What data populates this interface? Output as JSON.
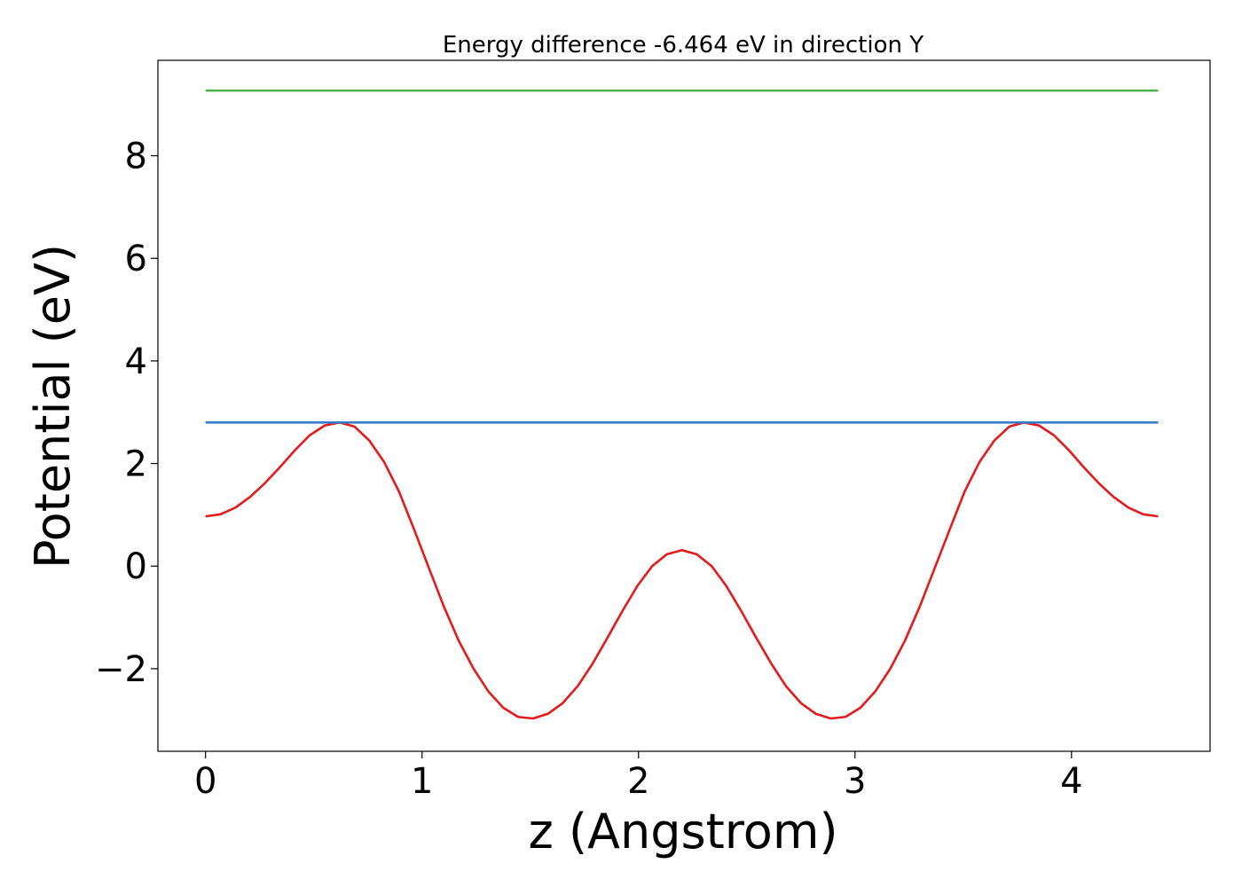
{
  "chart_data": {
    "type": "line",
    "title": "Energy difference -6.464 eV in direction Y",
    "xlabel": "z (Angstrom)",
    "ylabel": "Potential (eV)",
    "xlim": [
      -0.22,
      4.64
    ],
    "ylim": [
      -3.61,
      9.86
    ],
    "grid": false,
    "x_ticks": [
      {
        "value": 0,
        "label": "0"
      },
      {
        "value": 1,
        "label": "1"
      },
      {
        "value": 2,
        "label": "2"
      },
      {
        "value": 3,
        "label": "3"
      },
      {
        "value": 4,
        "label": "4"
      }
    ],
    "y_ticks": [
      {
        "value": -2,
        "label": "−2"
      },
      {
        "value": 0,
        "label": "0"
      },
      {
        "value": 2,
        "label": "2"
      },
      {
        "value": 4,
        "label": "4"
      },
      {
        "value": 6,
        "label": "6"
      },
      {
        "value": 8,
        "label": "8"
      }
    ],
    "series": [
      {
        "color": "#e41a1c",
        "x": [
          0.0,
          0.069,
          0.138,
          0.206,
          0.275,
          0.344,
          0.413,
          0.481,
          0.55,
          0.619,
          0.688,
          0.756,
          0.825,
          0.894,
          0.963,
          1.031,
          1.1,
          1.169,
          1.238,
          1.306,
          1.375,
          1.444,
          1.513,
          1.581,
          1.65,
          1.719,
          1.788,
          1.856,
          1.925,
          1.994,
          2.063,
          2.131,
          2.2,
          2.269,
          2.338,
          2.406,
          2.475,
          2.544,
          2.613,
          2.681,
          2.75,
          2.819,
          2.888,
          2.956,
          3.025,
          3.094,
          3.163,
          3.231,
          3.3,
          3.369,
          3.438,
          3.506,
          3.575,
          3.644,
          3.713,
          3.781,
          3.85,
          3.919,
          3.988,
          4.056,
          4.125,
          4.194,
          4.263,
          4.331,
          4.4
        ],
        "y": [
          0.97,
          1.01,
          1.14,
          1.35,
          1.62,
          1.93,
          2.26,
          2.55,
          2.74,
          2.8,
          2.72,
          2.45,
          2.03,
          1.45,
          0.72,
          -0.03,
          -0.78,
          -1.45,
          -2.0,
          -2.44,
          -2.76,
          -2.94,
          -2.97,
          -2.88,
          -2.67,
          -2.34,
          -1.9,
          -1.4,
          -0.88,
          -0.39,
          0.0,
          0.23,
          0.31,
          0.23,
          0.0,
          -0.39,
          -0.88,
          -1.4,
          -1.9,
          -2.34,
          -2.67,
          -2.88,
          -2.97,
          -2.94,
          -2.76,
          -2.44,
          -2.0,
          -1.45,
          -0.78,
          -0.03,
          0.72,
          1.45,
          2.03,
          2.45,
          2.72,
          2.8,
          2.74,
          2.55,
          2.26,
          1.93,
          1.62,
          1.35,
          1.14,
          1.01,
          0.97
        ]
      },
      {
        "color": "#3a7bc8",
        "x": [
          0,
          4.4
        ],
        "y": [
          2.8,
          2.8
        ]
      },
      {
        "color": "#4daf4a",
        "x": [
          0,
          4.4
        ],
        "y": [
          9.27,
          9.27
        ]
      }
    ]
  }
}
